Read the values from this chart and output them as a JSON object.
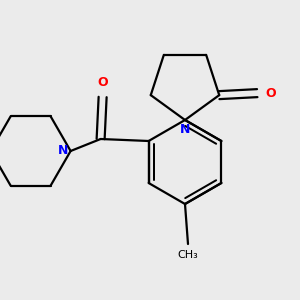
{
  "background_color": "#ebebeb",
  "bond_color": "#000000",
  "N_color": "#0000ff",
  "O_color": "#ff0000",
  "line_width": 1.6,
  "figsize": [
    3.0,
    3.0
  ],
  "dpi": 100,
  "xlim": [
    0,
    300
  ],
  "ylim": [
    0,
    300
  ]
}
